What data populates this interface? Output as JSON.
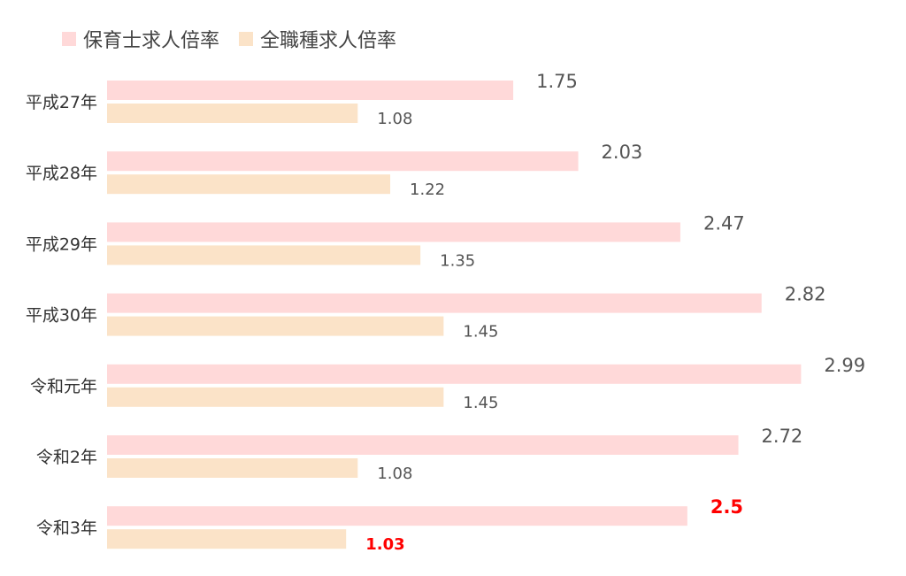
{
  "chart_data": {
    "type": "bar",
    "orientation": "horizontal",
    "categories": [
      "平成27年",
      "平成28年",
      "平成29年",
      "平成30年",
      "令和元年",
      "令和2年",
      "令和3年"
    ],
    "series": [
      {
        "name": "保育士求人倍率",
        "color": "#FFD9D9",
        "values": [
          1.75,
          2.03,
          2.47,
          2.82,
          2.99,
          2.72,
          2.5
        ],
        "labels": [
          "1.75",
          "2.03",
          "2.47",
          "2.82",
          "2.99",
          "2.72",
          "2.5"
        ]
      },
      {
        "name": "全職種求人倍率",
        "color": "#FBE3C8",
        "values": [
          1.08,
          1.22,
          1.35,
          1.45,
          1.45,
          1.08,
          1.03
        ],
        "labels": [
          "1.08",
          "1.22",
          "1.35",
          "1.45",
          "1.45",
          "1.08",
          "1.03"
        ]
      }
    ],
    "xlim": [
      0,
      3.0
    ],
    "grid": false,
    "legend_position": "top-left",
    "label_color": "#555555",
    "highlight_color": "#FF0000",
    "highlight_category_index": 6
  }
}
